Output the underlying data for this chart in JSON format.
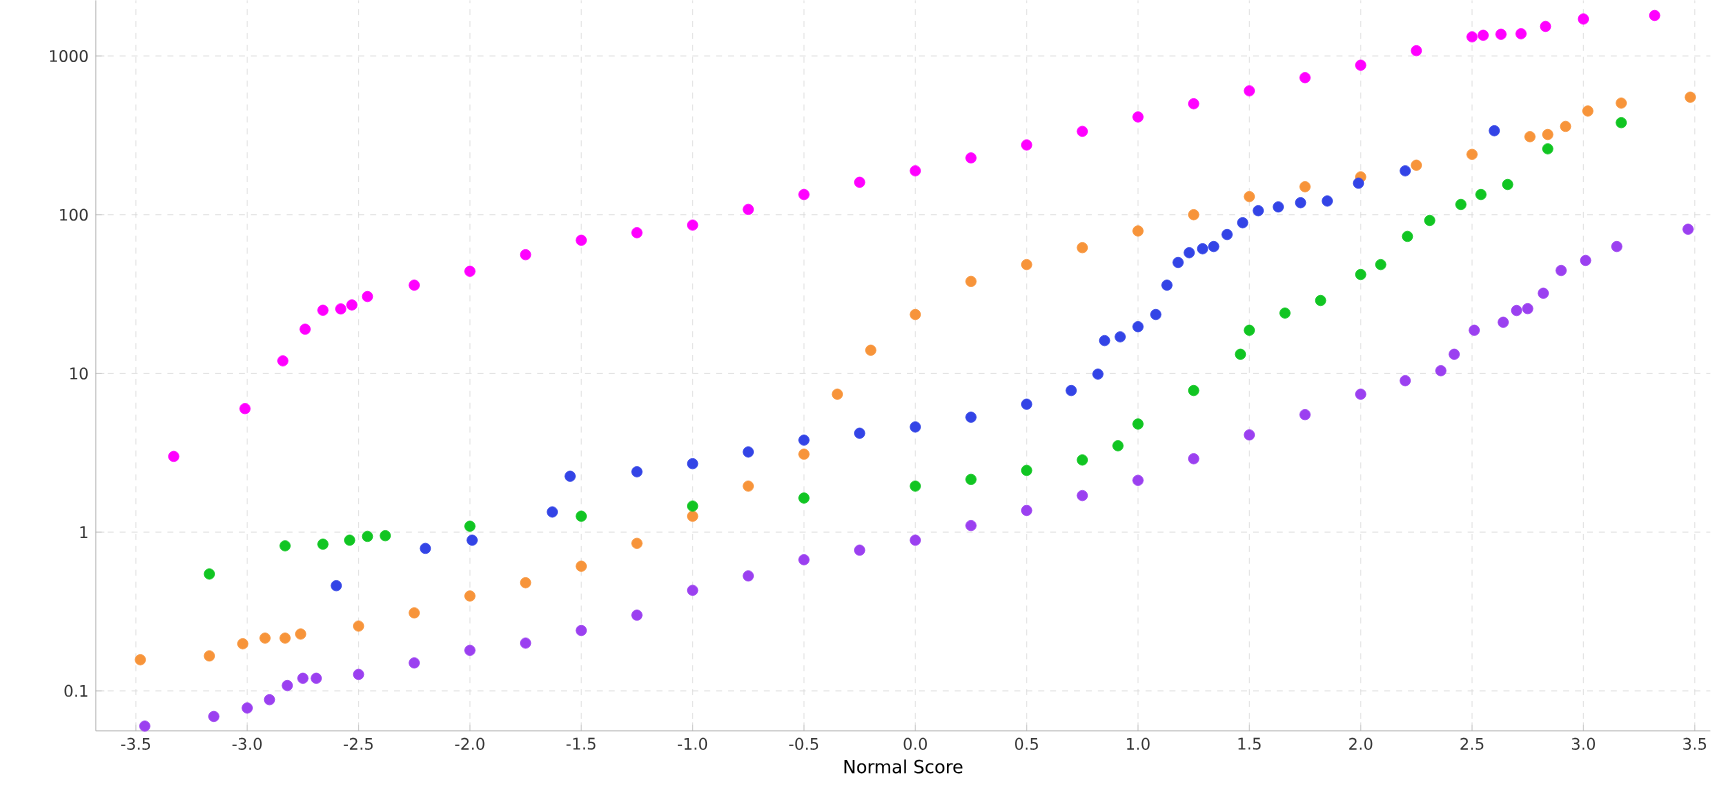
{
  "chart_data": {
    "type": "scatter",
    "xlabel": "Normal Score",
    "log": "y",
    "grid": true,
    "xlim": [
      -3.68,
      3.57
    ],
    "ylim": [
      0.056,
      2240
    ],
    "xticks": [
      -3.5,
      {
        "value": -3,
        "label": "-3.0"
      },
      -2.5,
      {
        "value": -2,
        "label": "-2.0"
      },
      -1.5,
      {
        "value": -1,
        "label": "-1.0"
      },
      -0.5,
      {
        "value": 0,
        "label": "0.0"
      },
      0.5,
      {
        "value": 1,
        "label": "1.0"
      },
      1.5,
      {
        "value": 2,
        "label": "2.0"
      },
      2.5,
      {
        "value": 3,
        "label": "3.0"
      },
      3.5
    ],
    "yticks": [
      0.1,
      1,
      10,
      100,
      1000
    ],
    "series": [
      {
        "color": "#ff00ff",
        "x": [
          -3.33,
          -3.01,
          -2.84,
          -2.74,
          -2.66,
          -2.58,
          -2.53,
          -2.46,
          -2.25,
          -2.0,
          -1.75,
          -1.5,
          -1.25,
          -1.0,
          -0.75,
          -0.5,
          -0.25,
          0.0,
          0.25,
          0.5,
          0.75,
          1.0,
          1.25,
          1.5,
          1.75,
          2.0,
          2.25,
          2.5,
          2.55,
          2.63,
          2.72,
          2.83,
          3.0,
          3.32
        ],
        "values": [
          3.0,
          6.0,
          12,
          19,
          25,
          25.5,
          27,
          30.5,
          36,
          44,
          56,
          69,
          77,
          86,
          108,
          134,
          160,
          189,
          228,
          275,
          335,
          413,
          500,
          603,
          730,
          875,
          1080,
          1320,
          1350,
          1370,
          1380,
          1535,
          1710,
          1800
        ]
      },
      {
        "color": "#f7943a",
        "x": [
          -3.48,
          -3.17,
          -3.02,
          -2.92,
          -2.83,
          -2.76,
          -2.5,
          -2.25,
          -2.0,
          -1.75,
          -1.5,
          -1.25,
          -1.0,
          -0.75,
          -0.5,
          -0.35,
          -0.2,
          0.0,
          0.25,
          0.5,
          0.75,
          1.0,
          1.25,
          1.5,
          1.75,
          2.0,
          2.25,
          2.5,
          2.76,
          2.84,
          2.92,
          3.02,
          3.17,
          3.48
        ],
        "values": [
          0.157,
          0.166,
          0.198,
          0.215,
          0.215,
          0.228,
          0.256,
          0.31,
          0.396,
          0.48,
          0.61,
          0.85,
          1.26,
          1.95,
          3.1,
          7.4,
          14,
          23.5,
          38,
          48.5,
          62,
          79,
          100,
          130,
          150,
          173,
          205,
          240,
          310,
          320,
          360,
          450,
          505,
          550
        ]
      },
      {
        "color": "#3344e6",
        "x": [
          -2.6,
          -2.2,
          -1.99,
          -1.63,
          -1.55,
          -1.25,
          -1.0,
          -0.75,
          -0.5,
          -0.25,
          0.0,
          0.25,
          0.5,
          0.7,
          0.82,
          0.85,
          0.92,
          1.0,
          1.08,
          1.13,
          1.18,
          1.23,
          1.29,
          1.34,
          1.4,
          1.47,
          1.54,
          1.63,
          1.73,
          1.85,
          1.99,
          2.2,
          2.6
        ],
        "values": [
          0.46,
          0.79,
          0.89,
          1.34,
          2.25,
          2.4,
          2.7,
          3.2,
          3.8,
          4.2,
          4.6,
          5.3,
          6.4,
          7.8,
          9.9,
          16.1,
          17,
          19.7,
          23.5,
          36,
          50,
          57.6,
          61,
          63,
          75,
          89,
          106,
          112,
          119,
          122,
          158,
          189,
          338
        ]
      },
      {
        "color": "#11c522",
        "x": [
          -3.17,
          -2.83,
          -2.66,
          -2.54,
          -2.46,
          -2.38,
          -2.0,
          -1.5,
          -1.0,
          -0.5,
          0.0,
          0.25,
          0.5,
          0.75,
          0.91,
          1.0,
          1.25,
          1.46,
          1.5,
          1.66,
          1.82,
          2.0,
          2.09,
          2.21,
          2.31,
          2.45,
          2.54,
          2.66,
          2.84,
          3.17
        ],
        "values": [
          0.545,
          0.82,
          0.84,
          0.89,
          0.94,
          0.95,
          1.09,
          1.26,
          1.46,
          1.64,
          1.95,
          2.15,
          2.45,
          2.85,
          3.5,
          4.8,
          7.8,
          13.2,
          18.7,
          24,
          28.8,
          42,
          48.5,
          73,
          92,
          116,
          134,
          155,
          260,
          380
        ]
      },
      {
        "color": "#9b40f0",
        "x": [
          -3.46,
          -3.15,
          -3.0,
          -2.9,
          -2.82,
          -2.75,
          -2.69,
          -2.5,
          -2.25,
          -2.0,
          -1.75,
          -1.5,
          -1.25,
          -1.0,
          -0.75,
          -0.5,
          -0.25,
          0.0,
          0.25,
          0.5,
          0.75,
          1.0,
          1.25,
          1.5,
          1.75,
          2.0,
          2.2,
          2.36,
          2.42,
          2.51,
          2.64,
          2.7,
          2.75,
          2.82,
          2.9,
          3.01,
          3.15,
          3.47
        ],
        "values": [
          0.06,
          0.069,
          0.078,
          0.088,
          0.108,
          0.12,
          0.12,
          0.127,
          0.15,
          0.18,
          0.2,
          0.24,
          0.3,
          0.43,
          0.53,
          0.67,
          0.77,
          0.89,
          1.1,
          1.37,
          1.7,
          2.12,
          2.9,
          4.1,
          5.5,
          7.4,
          9.0,
          10.4,
          13.2,
          18.7,
          21,
          24.9,
          25.6,
          32,
          44.5,
          51.5,
          63,
          81
        ]
      }
    ]
  }
}
